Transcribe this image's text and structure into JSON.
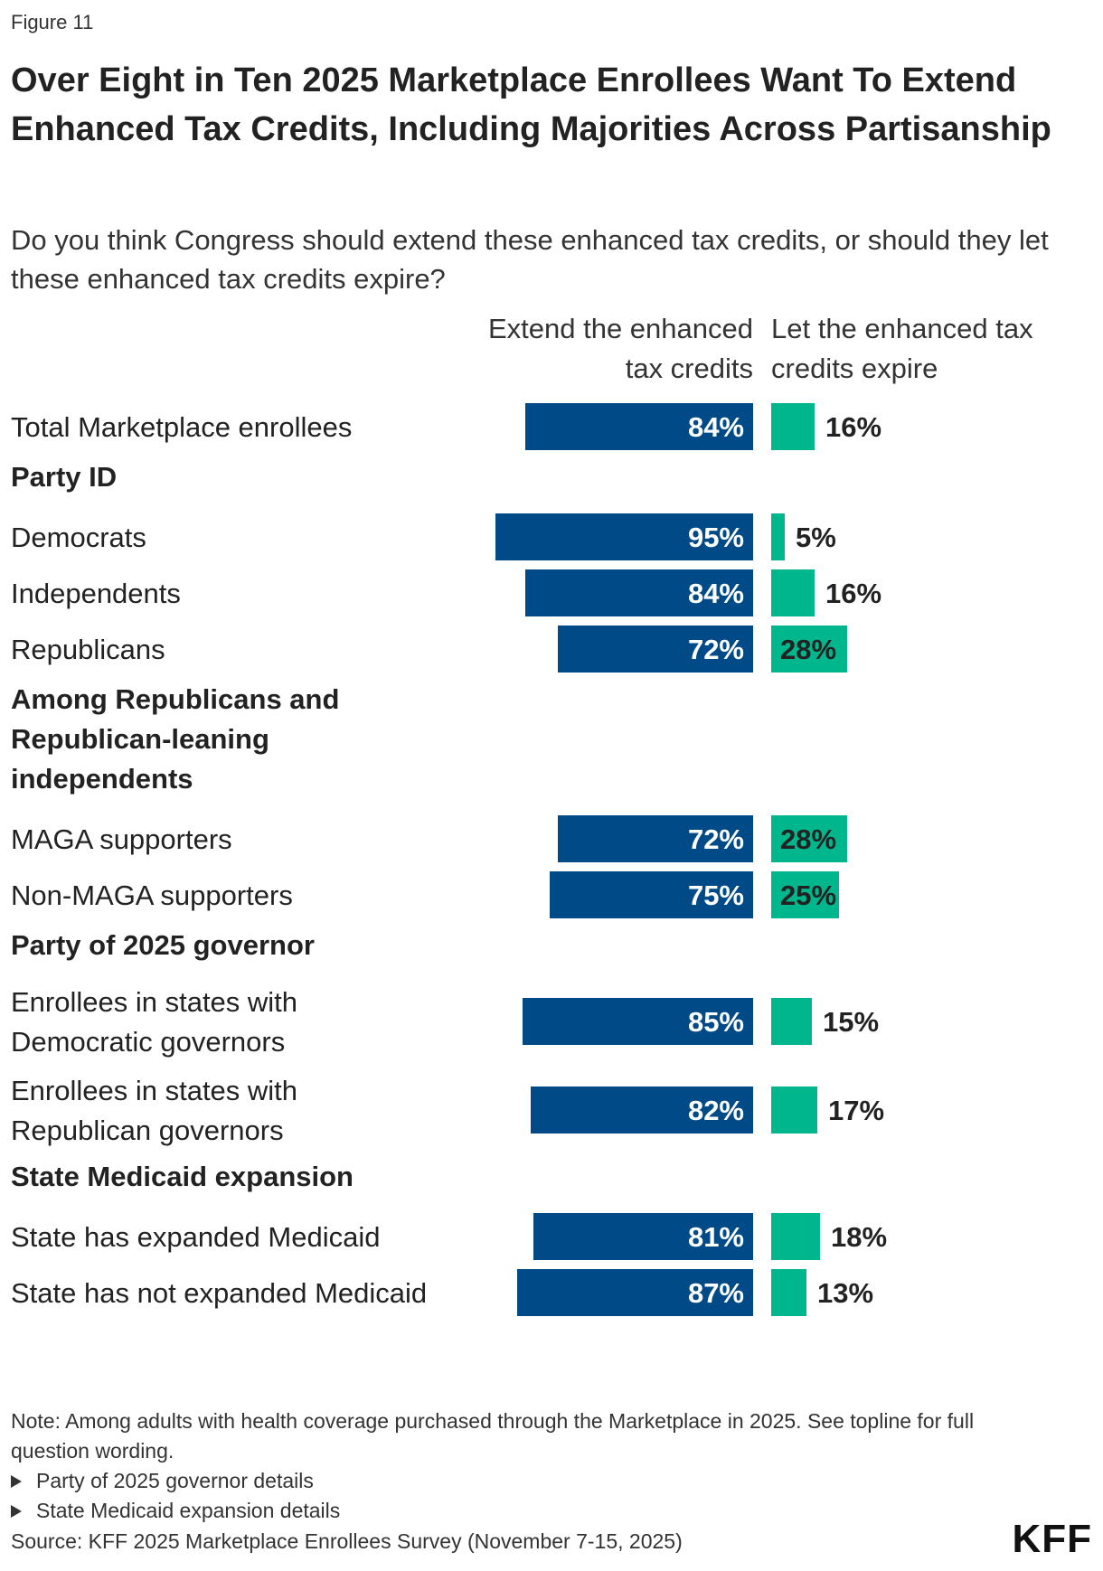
{
  "figure_label": "Figure 11",
  "title": "Over Eight in Ten 2025 Marketplace Enrollees Want To Extend Enhanced Tax Credits, Including Majorities Across Partisanship",
  "subtitle": "Do you think Congress should extend these enhanced tax credits, or should they let these enhanced tax credits expire?",
  "colors": {
    "extend": "#004a87",
    "expire": "#00b68c",
    "text": "#222222"
  },
  "chart_data": {
    "type": "bar",
    "orientation": "horizontal-diverging",
    "series": [
      {
        "name": "Extend the enhanced tax credits",
        "color": "#004a87"
      },
      {
        "name": "Let the enhanced tax credits expire",
        "color": "#00b68c"
      }
    ],
    "rows": [
      {
        "kind": "row",
        "label": "Total Marketplace enrollees",
        "extend": 84,
        "expire": 16
      },
      {
        "kind": "group",
        "label": "Party ID"
      },
      {
        "kind": "row",
        "label": "Democrats",
        "extend": 95,
        "expire": 5
      },
      {
        "kind": "row",
        "label": "Independents",
        "extend": 84,
        "expire": 16
      },
      {
        "kind": "row",
        "label": "Republicans",
        "extend": 72,
        "expire": 28
      },
      {
        "kind": "group",
        "label": "Among Republicans and Republican-leaning independents"
      },
      {
        "kind": "row",
        "label": "MAGA supporters",
        "extend": 72,
        "expire": 28
      },
      {
        "kind": "row",
        "label": "Non-MAGA supporters",
        "extend": 75,
        "expire": 25
      },
      {
        "kind": "group",
        "label": "Party of 2025 governor"
      },
      {
        "kind": "row",
        "label": "Enrollees in states with Democratic governors",
        "extend": 85,
        "expire": 15
      },
      {
        "kind": "row",
        "label": "Enrollees in states with Republican governors",
        "extend": 82,
        "expire": 17
      },
      {
        "kind": "group",
        "label": "State Medicaid expansion"
      },
      {
        "kind": "row",
        "label": "State has expanded Medicaid",
        "extend": 81,
        "expire": 18
      },
      {
        "kind": "row",
        "label": "State has not expanded Medicaid",
        "extend": 87,
        "expire": 13
      }
    ]
  },
  "note": "Note: Among adults with health coverage purchased through the Marketplace in 2025. See topline for full question wording.",
  "details": [
    {
      "label": "Party of 2025 governor details"
    },
    {
      "label": "State Medicaid expansion details"
    }
  ],
  "source": "Source: KFF 2025 Marketplace Enrollees Survey (November 7-15, 2025)",
  "logo": "KFF"
}
